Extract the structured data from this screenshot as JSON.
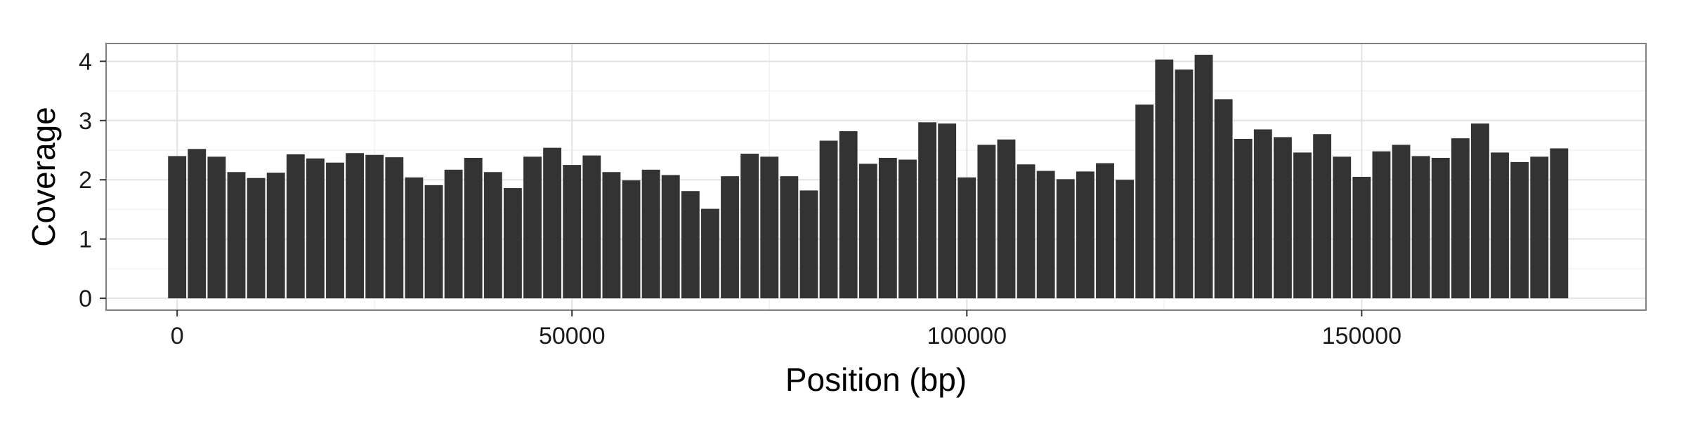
{
  "chart_data": {
    "type": "bar",
    "xlabel": "Position (bp)",
    "ylabel": "Coverage",
    "xlim": [
      -9000,
      186000
    ],
    "ylim": [
      -0.2,
      4.3
    ],
    "grid": true,
    "x_ticks": [
      {
        "value": 0,
        "label": "0"
      },
      {
        "value": 50000,
        "label": "50000"
      },
      {
        "value": 100000,
        "label": "100000"
      },
      {
        "value": 150000,
        "label": "150000"
      }
    ],
    "y_ticks": [
      {
        "value": 0,
        "label": "0"
      },
      {
        "value": 1,
        "label": "1"
      },
      {
        "value": 2,
        "label": "2"
      },
      {
        "value": 3,
        "label": "3"
      },
      {
        "value": 4,
        "label": "4"
      }
    ],
    "bin_width": 2500,
    "x": [
      0,
      2500,
      5000,
      7500,
      10000,
      12500,
      15000,
      17500,
      20000,
      22500,
      25000,
      27500,
      30000,
      32500,
      35000,
      37500,
      40000,
      42500,
      45000,
      47500,
      50000,
      52500,
      55000,
      57500,
      60000,
      62500,
      65000,
      67500,
      70000,
      72500,
      75000,
      77500,
      80000,
      82500,
      85000,
      87500,
      90000,
      92500,
      95000,
      97500,
      100000,
      102500,
      105000,
      107500,
      110000,
      112500,
      115000,
      117500,
      120000,
      122500,
      125000,
      127500,
      130000,
      132500,
      135000,
      137500,
      140000,
      142500,
      145000,
      147500,
      150000,
      152500,
      155000,
      157500,
      160000,
      162500,
      165000,
      167500,
      170000,
      172500,
      175000
    ],
    "values": [
      2.4,
      2.52,
      2.39,
      2.13,
      2.03,
      2.12,
      2.43,
      2.36,
      2.29,
      2.45,
      2.42,
      2.38,
      2.04,
      1.91,
      2.17,
      2.37,
      2.13,
      1.86,
      2.39,
      2.54,
      2.25,
      2.41,
      2.13,
      1.99,
      2.17,
      2.08,
      1.81,
      1.51,
      2.06,
      2.44,
      2.39,
      2.06,
      1.82,
      2.66,
      2.82,
      2.27,
      2.37,
      2.34,
      2.97,
      2.95,
      2.04,
      2.59,
      2.68,
      2.26,
      2.15,
      2.01,
      2.14,
      2.28,
      2.0,
      3.27,
      4.03,
      3.86,
      4.11,
      3.36,
      2.69,
      2.85,
      2.72,
      2.46,
      2.77,
      2.39,
      2.05,
      2.48,
      2.59,
      2.4,
      2.37,
      2.7,
      2.95,
      2.46,
      2.3,
      2.39,
      2.53
    ]
  }
}
